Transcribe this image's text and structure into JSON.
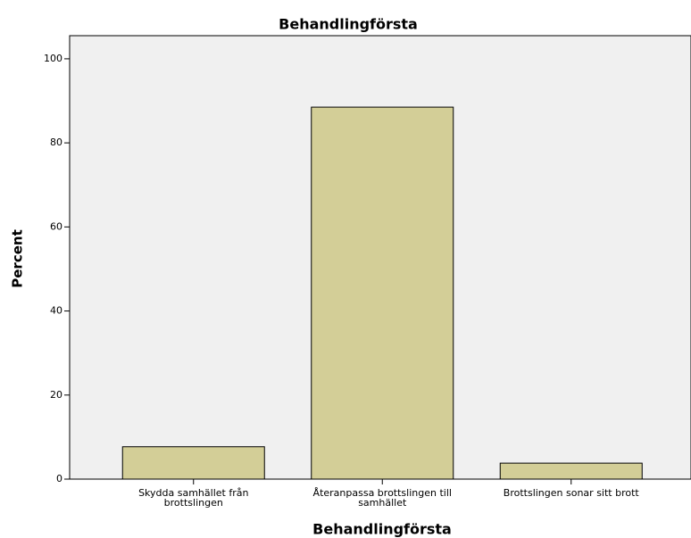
{
  "chart_data": {
    "type": "bar",
    "title": "Behandlingförsta",
    "x_label": "Behandlingförsta",
    "y_label": "Percent",
    "categories": [
      "Skydda samhället från brottslingen",
      "Återanpassa brottslingen till samhället",
      "Brottslingen sonar sitt brott"
    ],
    "values": [
      7.7,
      88.5,
      3.8
    ],
    "color": "#d3ce97",
    "ylim": [
      0,
      105.5
    ],
    "yticks": [
      0,
      20,
      40,
      60,
      80,
      100
    ],
    "grid": false
  }
}
